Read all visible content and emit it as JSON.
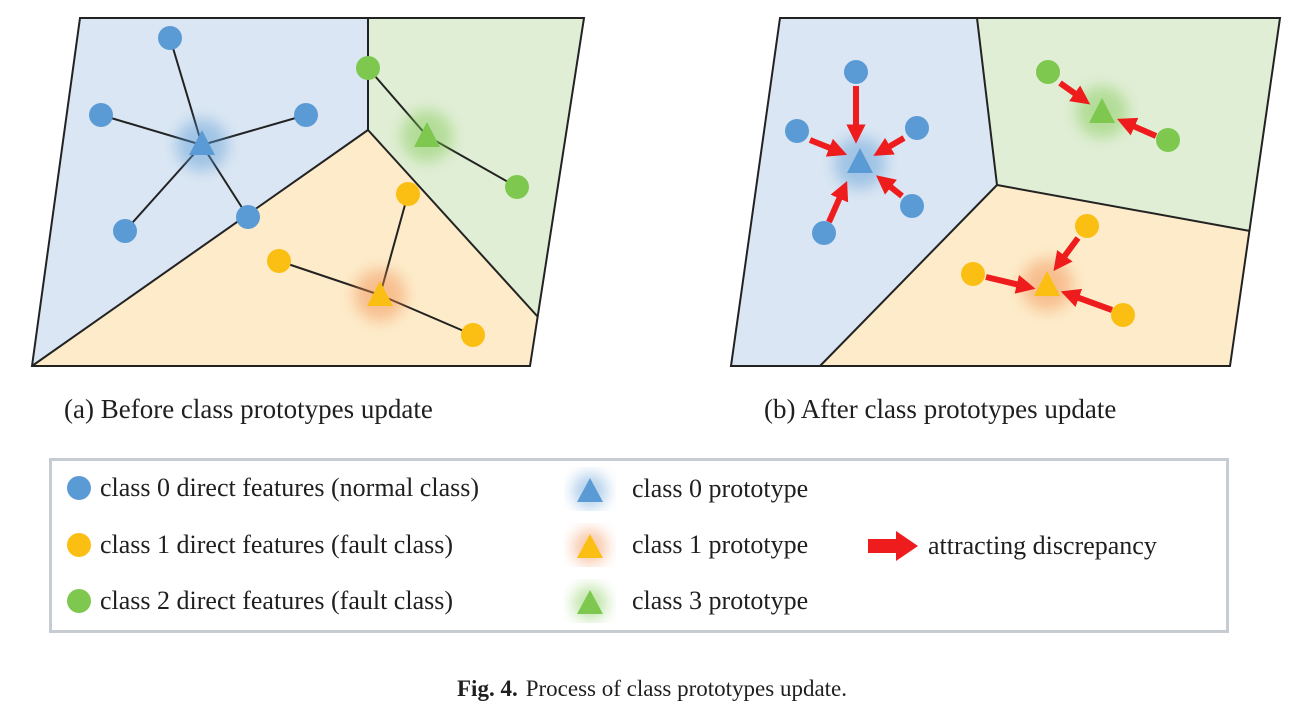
{
  "panels": {
    "a": {
      "caption": "(a) Before class prototypes update"
    },
    "b": {
      "caption": "(b) After class prototypes update"
    }
  },
  "legend": {
    "class0_features": "class 0 direct features (normal class)",
    "class1_features": "class 1 direct features (fault class)",
    "class2_features": "class 2 direct features (fault class)",
    "class0_prototype": "class 0 prototype",
    "class1_prototype": "class 1 prototype",
    "class3_prototype": "class 3 prototype",
    "attracting": "attracting discrepancy"
  },
  "figure_caption": {
    "label": "Fig. 4.",
    "text": "Process of class prototypes update."
  },
  "colors": {
    "class0_fill": "#5b9bd5",
    "class0_region": "#dae6f3",
    "class1_fill": "#fbbf14",
    "class1_region": "#fdebc9",
    "class2_fill": "#7ec850",
    "class2_region": "#e0eed5",
    "arrow": "#ee1c1c"
  },
  "icons": {
    "feature": "circle-icon",
    "prototype": "triangle-icon",
    "arrow": "red-arrow-icon"
  }
}
